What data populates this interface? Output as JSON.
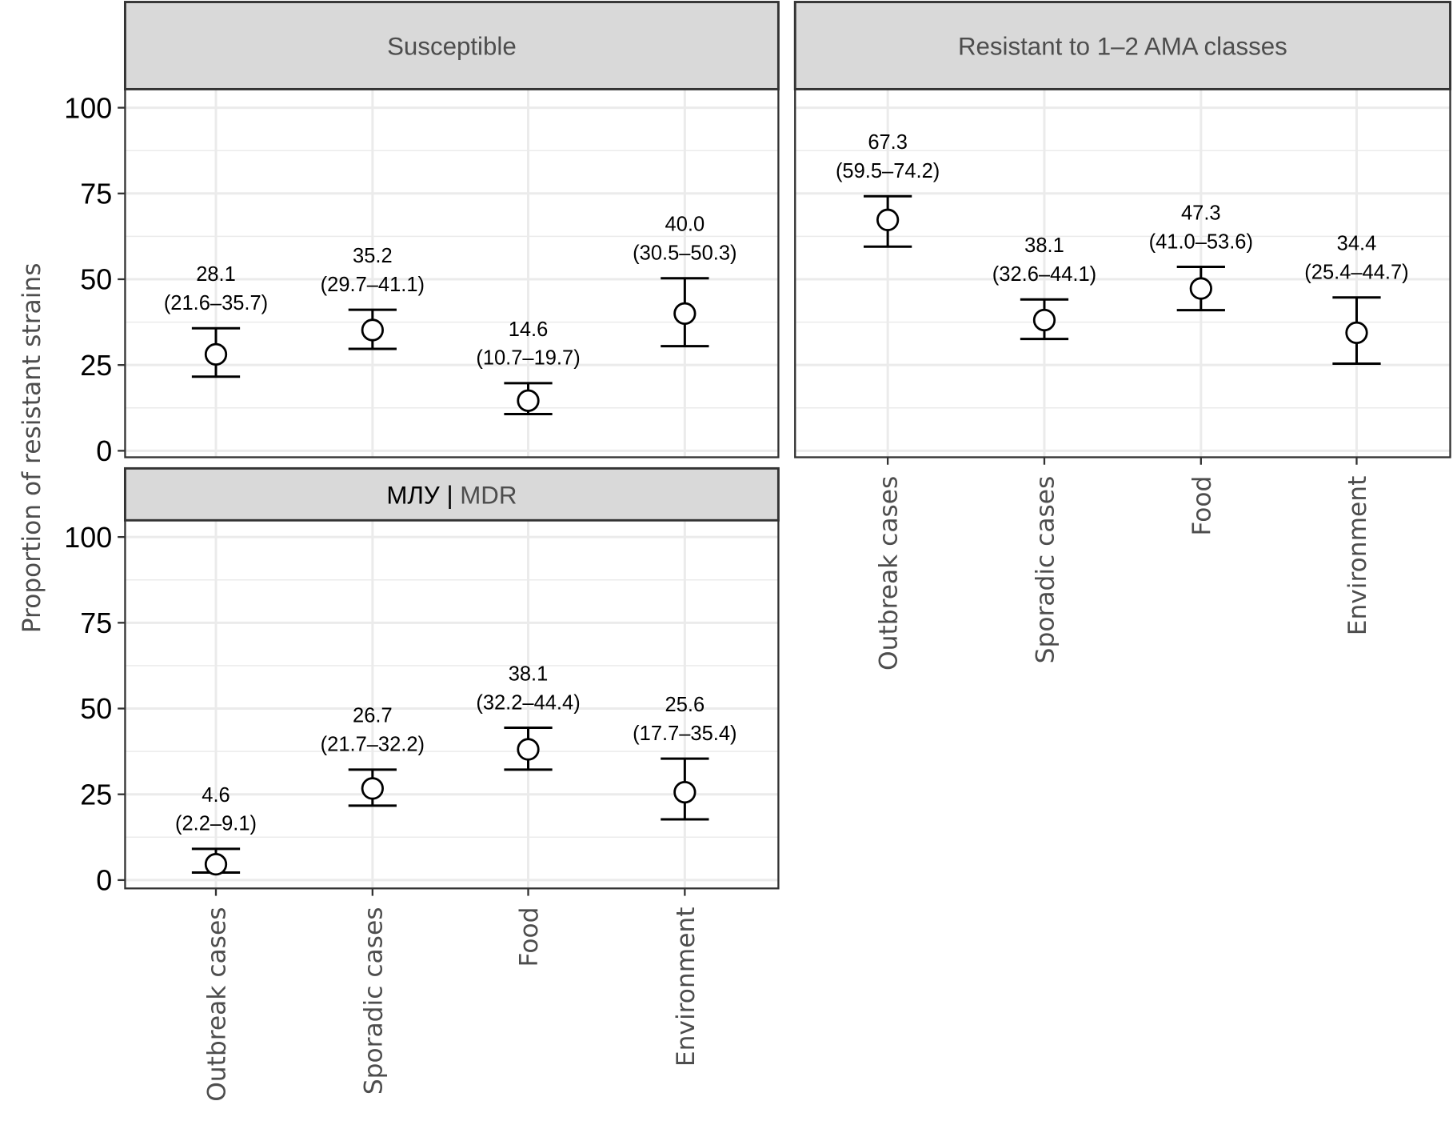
{
  "chart_data": {
    "type": "scatter",
    "subtype": "point-with-error-bars, faceted",
    "ylabel": "Proportion of resistant strains",
    "ylim": [
      0,
      100
    ],
    "yticks": [
      0,
      25,
      50,
      75,
      100
    ],
    "grid": true,
    "categories": [
      "Outbreak cases",
      "Sporadic cases",
      "Food",
      "Environment"
    ],
    "colors": {
      "strip_fill": "#d9d9d9",
      "strip_border": "#333333",
      "grid": "#ebebeb",
      "marker": "#000000",
      "marker_fill": "#ffffff"
    },
    "panels": [
      {
        "title": "Susceptible",
        "values": [
          28.1,
          35.2,
          14.6,
          40.0
        ],
        "lower": [
          21.6,
          29.7,
          10.7,
          30.5
        ],
        "upper": [
          35.7,
          41.1,
          19.7,
          50.3
        ],
        "labels": [
          "28.1",
          "35.2",
          "14.6",
          "40.0"
        ],
        "ci_labels": [
          "(21.6–35.7)",
          "(29.7–41.1)",
          "(10.7–19.7)",
          "(30.5–50.3)"
        ]
      },
      {
        "title": "Resistant to 1–2 AMA classes",
        "values": [
          67.3,
          38.1,
          47.3,
          34.4
        ],
        "lower": [
          59.5,
          32.6,
          41.0,
          25.4
        ],
        "upper": [
          74.2,
          44.1,
          53.6,
          44.7
        ],
        "labels": [
          "67.3",
          "38.1",
          "47.3",
          "34.4"
        ],
        "ci_labels": [
          "(59.5–74.2)",
          "(32.6–44.1)",
          "(41.0–53.6)",
          "(25.4–44.7)"
        ]
      },
      {
        "title": "МЛУ | MDR",
        "title_parts": [
          "МЛУ | ",
          "MDR"
        ],
        "values": [
          4.6,
          26.7,
          38.1,
          25.6
        ],
        "lower": [
          2.2,
          21.7,
          32.2,
          17.7
        ],
        "upper": [
          9.1,
          32.2,
          44.4,
          35.4
        ],
        "labels": [
          "4.6",
          "26.7",
          "38.1",
          "25.6"
        ],
        "ci_labels": [
          "(2.2–9.1)",
          "(21.7–32.2)",
          "(32.2–44.4)",
          "(17.7–35.4)"
        ]
      }
    ]
  }
}
